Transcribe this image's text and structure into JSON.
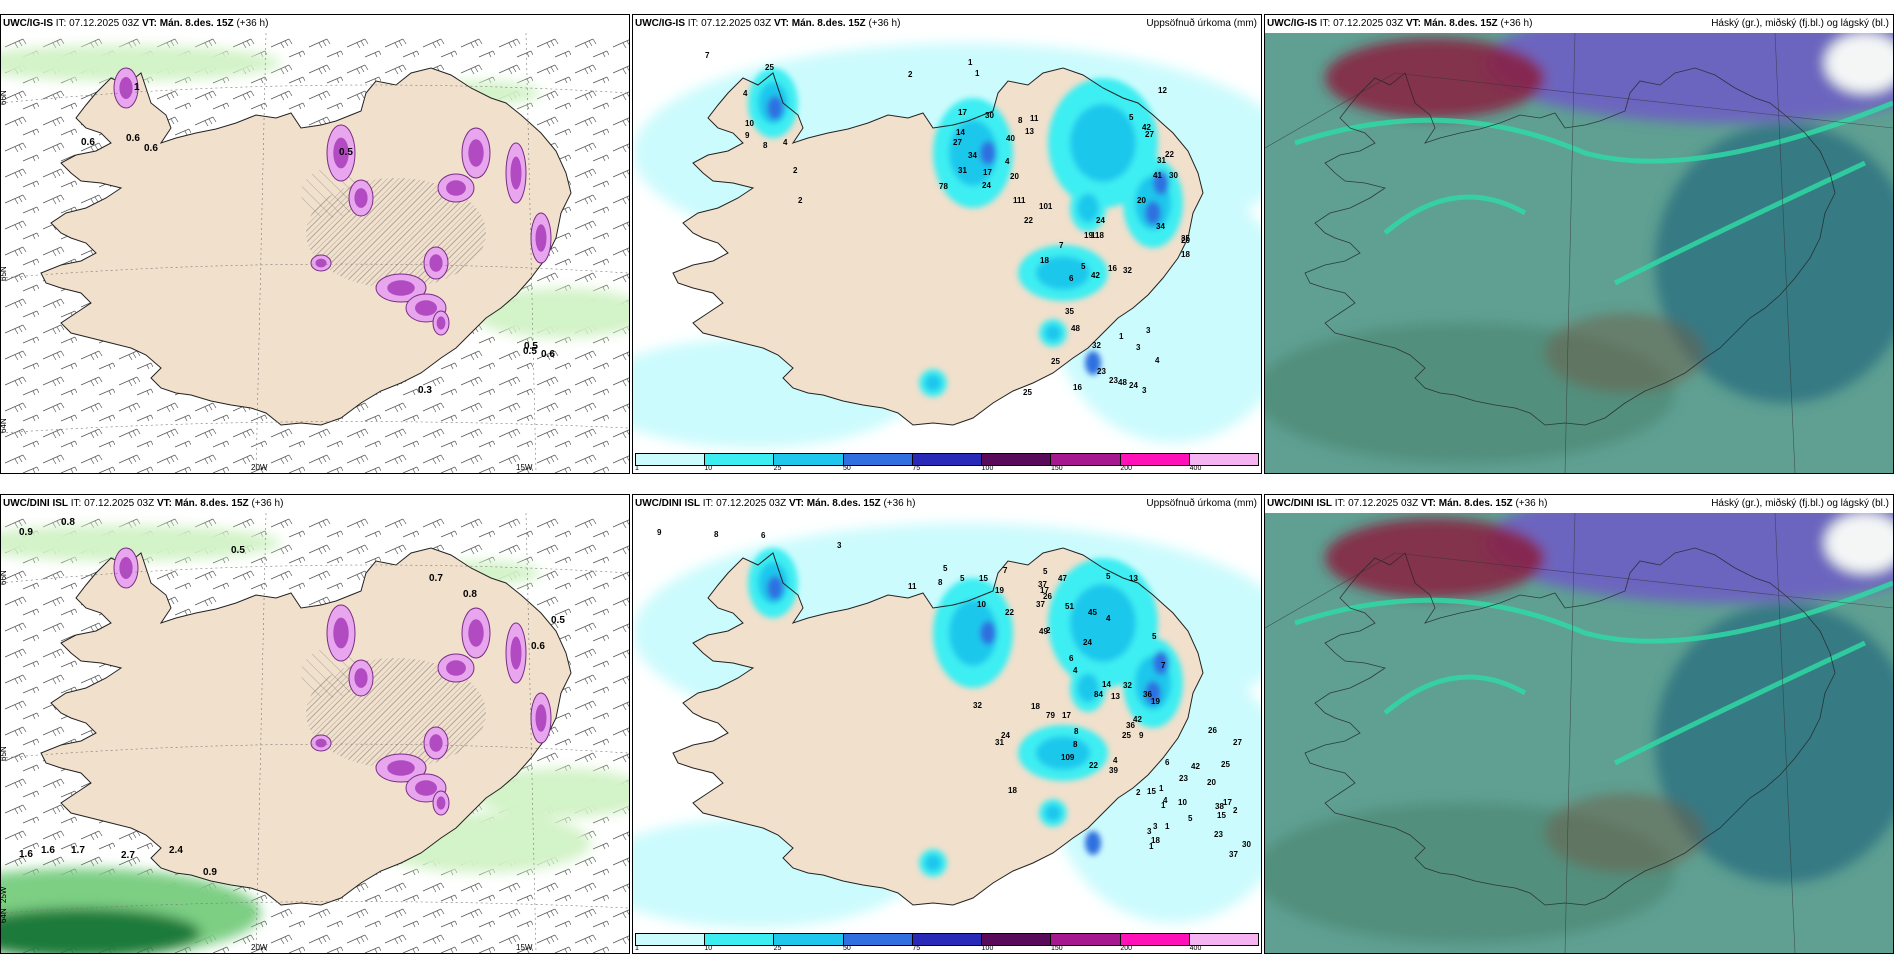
{
  "colors": {
    "land": "#f1e0cc",
    "snow_light": "#e8a6ee",
    "snow_mid": "#b24ac2",
    "snow_dark": "#7a2c86",
    "rain_light": "#d3f3c8",
    "rain_mid": "#7dcf84",
    "rain_dark": "#1f7a3a",
    "precip_1": "#ccfbfd",
    "precip_10": "#3ceef2",
    "precip_25": "#1fc7ec",
    "precip_50": "#2f6fe0",
    "precip_75": "#2a2ab8",
    "precip_100": "#5a0a5a",
    "precip_150": "#a5188f",
    "precip_200": "#ff10b8",
    "precip_400": "#f6b3f1",
    "cloud_base": "#5fa092",
    "cloud_high": "#6f5ec4",
    "cloud_dark_red": "#8a1e3e",
    "cloud_front": "#2fd9a5"
  },
  "rows": [
    {
      "panels": [
        {
          "source": "UWC/IG-IS",
          "it_label": "IT:",
          "it_value": "07.12.2025 03Z",
          "vt_label": "VT:",
          "vt_value": "Mán. 8.des. 15Z",
          "lead": "(+36 h)",
          "right_title": "",
          "axis_labels": [
            "66N",
            "65N",
            "64N",
            "20W",
            "15W"
          ],
          "values": [
            "1",
            "0.6",
            "0.6",
            "0.6",
            "0.5",
            "0.5",
            "0.6",
            "0.3",
            "0.5"
          ]
        },
        {
          "source": "UWC/IG-IS",
          "it_label": "IT:",
          "it_value": "07.12.2025 03Z",
          "vt_label": "VT:",
          "vt_value": "Mán. 8.des. 15Z",
          "lead": "(+36 h)",
          "right_title": "Uppsöfnuð úrkoma (mm)",
          "values": [
            "7",
            "2",
            "1",
            "1",
            "25",
            "4",
            "10",
            "9",
            "8",
            "4",
            "2",
            "2",
            "17",
            "30",
            "11",
            "42",
            "12",
            "14",
            "27",
            "8",
            "5",
            "34",
            "40",
            "13",
            "27",
            "31",
            "17",
            "4",
            "78",
            "22",
            "31",
            "24",
            "20",
            "111",
            "101",
            "41",
            "30",
            "20",
            "22",
            "24",
            "118",
            "19",
            "7",
            "34",
            "20",
            "18",
            "6",
            "5",
            "42",
            "16",
            "32",
            "18",
            "35",
            "35",
            "48",
            "32",
            "25",
            "23",
            "23",
            "48",
            "24",
            "3",
            "3",
            "3",
            "4",
            "1",
            "16",
            "25"
          ],
          "colorbar_ticks": [
            "1",
            "10",
            "25",
            "50",
            "75",
            "100",
            "150",
            "200",
            "400"
          ]
        },
        {
          "source": "UWC/IG-IS",
          "it_label": "IT:",
          "it_value": "07.12.2025 03Z",
          "vt_label": "VT:",
          "vt_value": "Mán. 8.des. 15Z",
          "lead": "(+36 h)",
          "right_title": "Háský (gr.), miðský (fj.bl.) og lágský (bl.)"
        }
      ]
    },
    {
      "panels": [
        {
          "source": "UWC/DINI ISL",
          "it_label": "IT:",
          "it_value": "07.12.2025 03Z",
          "vt_label": "VT:",
          "vt_value": "Mán. 8.des. 15Z",
          "lead": "(+36 h)",
          "right_title": "",
          "axis_labels": [
            "66N",
            "65N",
            "64N",
            "25W",
            "20W",
            "15W"
          ],
          "values": [
            "0.9",
            "0.8",
            "0.5",
            "0.7",
            "0.8",
            "0.5",
            "0.6",
            "1.7",
            "1.6",
            "2.7",
            "2.4",
            "0.9",
            "1.6"
          ]
        },
        {
          "source": "UWC/DINI ISL",
          "it_label": "IT:",
          "it_value": "07.12.2025 03Z",
          "vt_label": "VT:",
          "vt_value": "Mán. 8.des. 15Z",
          "lead": "(+36 h)",
          "right_title": "Uppsöfnuð úrkoma (mm)",
          "values": [
            "9",
            "8",
            "6",
            "3",
            "5",
            "7",
            "5",
            "8",
            "5",
            "15",
            "19",
            "11",
            "47",
            "37",
            "5",
            "13",
            "10",
            "17",
            "22",
            "26",
            "51",
            "45",
            "4",
            "49",
            "37",
            "2",
            "24",
            "6",
            "4",
            "5",
            "14",
            "7",
            "32",
            "32",
            "13",
            "24",
            "18",
            "79",
            "17",
            "31",
            "36",
            "84",
            "109",
            "22",
            "39",
            "25",
            "19",
            "18",
            "8",
            "42",
            "36",
            "9",
            "8",
            "4",
            "6",
            "23",
            "42",
            "26",
            "27",
            "25",
            "20",
            "17",
            "15",
            "23",
            "37",
            "30",
            "38",
            "2",
            "1",
            "1",
            "15",
            "2",
            "4",
            "10",
            "5",
            "1",
            "3",
            "3",
            "18",
            "1"
          ],
          "colorbar_ticks": [
            "1",
            "10",
            "25",
            "50",
            "75",
            "100",
            "150",
            "200",
            "400"
          ]
        },
        {
          "source": "UWC/DINI ISL",
          "it_label": "IT:",
          "it_value": "07.12.2025 03Z",
          "vt_label": "VT:",
          "vt_value": "Mán. 8.des. 15Z",
          "lead": "(+36 h)",
          "right_title": "Háský (gr.), miðský (fj.bl.) og lágský (bl.)"
        }
      ]
    }
  ]
}
